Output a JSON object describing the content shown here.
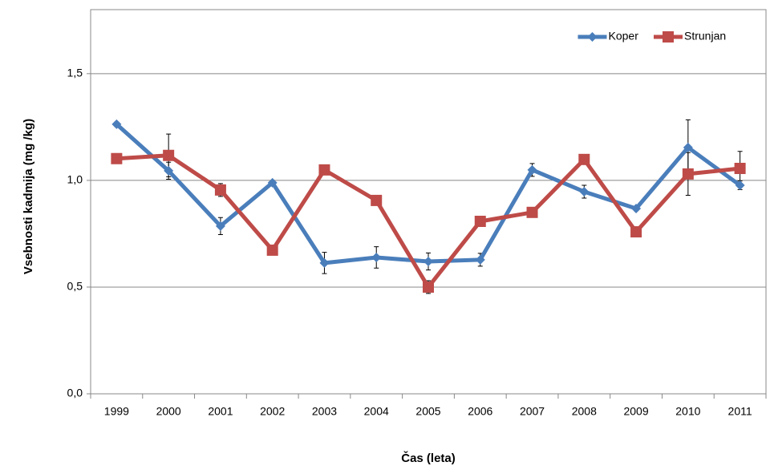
{
  "chart_data": {
    "type": "line",
    "y_label": "Vsebnosti kadmija (mg /kg)",
    "x_label": "Čas (leta)",
    "categories": [
      "1999",
      "2000",
      "2001",
      "2002",
      "2003",
      "2004",
      "2005",
      "2006",
      "2007",
      "2008",
      "2009",
      "2010",
      "2011"
    ],
    "series": [
      {
        "name": "Koper",
        "color": "#4a7ebb",
        "marker": "diamond",
        "values": [
          1.263,
          1.045,
          0.786,
          0.989,
          0.613,
          0.639,
          0.62,
          0.628,
          1.049,
          0.947,
          0.868,
          1.154,
          0.977
        ],
        "errors": [
          0.01,
          0.04,
          0.04,
          0.01,
          0.05,
          0.05,
          0.04,
          0.03,
          0.03,
          0.03,
          0.01,
          0.13,
          0.02
        ]
      },
      {
        "name": "Strunjan",
        "color": "#be4b48",
        "marker": "square",
        "values": [
          1.102,
          1.117,
          0.955,
          0.673,
          1.049,
          0.906,
          0.5,
          0.808,
          0.85,
          1.098,
          0.759,
          1.03,
          1.056
        ],
        "errors": [
          0,
          0.1,
          0.03,
          0,
          0,
          0,
          0.03,
          0.01,
          0,
          0.02,
          0,
          0.1,
          0.08
        ]
      }
    ],
    "ylim": [
      0,
      1.8
    ],
    "yticks": [
      {
        "value": 0,
        "label": "0,0"
      },
      {
        "value": 0.5,
        "label": "0,5"
      },
      {
        "value": 1,
        "label": "1,0"
      },
      {
        "value": 1.5,
        "label": "1,5"
      }
    ],
    "grid": true,
    "legend": "top-right"
  }
}
